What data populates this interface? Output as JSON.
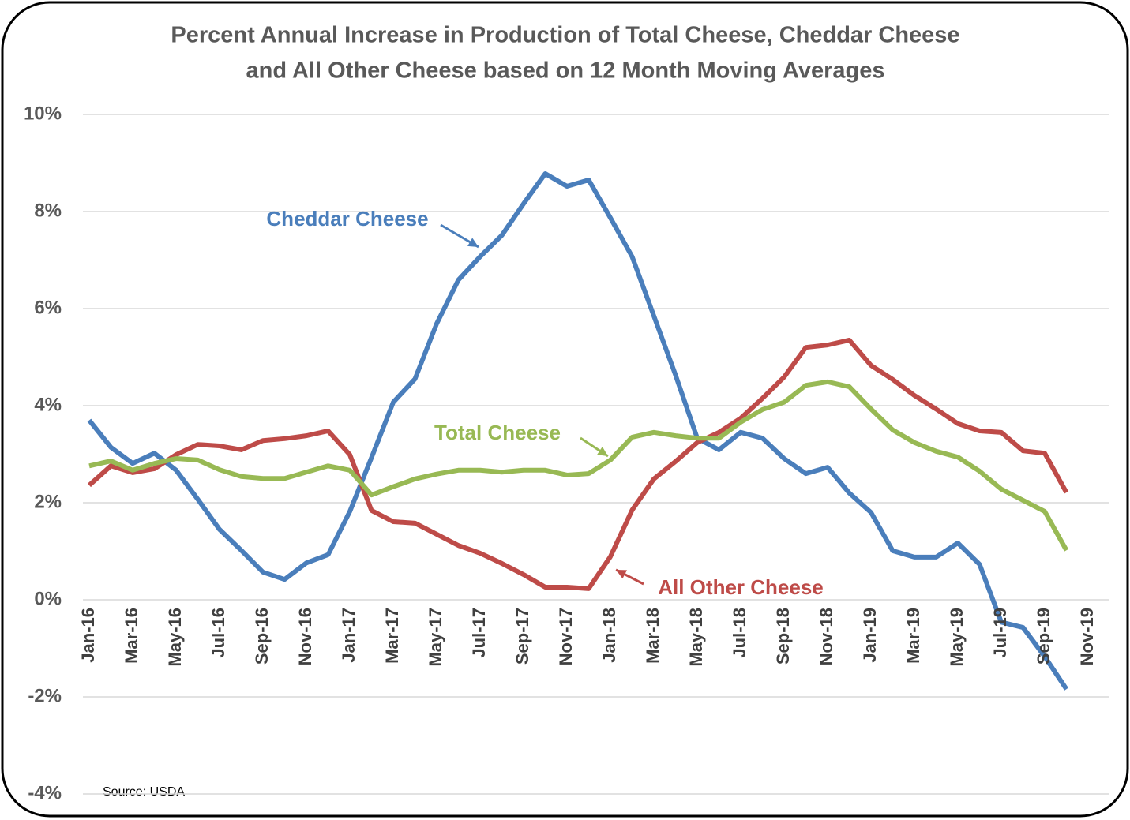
{
  "chart_data": {
    "type": "line",
    "title": [
      "Percent Annual Increase in Production of  Total Cheese, Cheddar Cheese",
      "and All Other Cheese based on 12 Month Moving Averages"
    ],
    "source": "Source: USDA",
    "categories": [
      "Jan-16",
      null,
      "Mar-16",
      null,
      "May-16",
      null,
      "Jul-16",
      null,
      "Sep-16",
      null,
      "Nov-16",
      null,
      "Jan-17",
      null,
      "Mar-17",
      null,
      "May-17",
      null,
      "Jul-17",
      null,
      "Sep-17",
      null,
      "Nov-17",
      null,
      "Jan-18",
      null,
      "Mar-18",
      null,
      "May-18",
      null,
      "Jul-18",
      null,
      "Sep-18",
      null,
      "Nov-18",
      null,
      "Jan-19",
      null,
      "Mar-19",
      null,
      "May-19",
      null,
      "Jul-19",
      null,
      "Sep-19",
      null,
      "Nov-19"
    ],
    "ylim": [
      -4,
      10
    ],
    "yticks": [
      {
        "value": -4,
        "label": "-4%"
      },
      {
        "value": -2,
        "label": "-2%"
      },
      {
        "value": 0,
        "label": "0%"
      },
      {
        "value": 2,
        "label": "2%"
      },
      {
        "value": 4,
        "label": "4%"
      },
      {
        "value": 6,
        "label": "6%"
      },
      {
        "value": 8,
        "label": "8%"
      },
      {
        "value": 10,
        "label": "10%"
      }
    ],
    "grid": true,
    "series": [
      {
        "name": "Cheddar Cheese",
        "color": "#4a7ebb",
        "values": [
          3.7,
          3.14,
          2.81,
          3.02,
          2.67,
          2.07,
          1.45,
          1.02,
          0.57,
          0.42,
          0.76,
          0.93,
          1.82,
          2.93,
          4.07,
          4.55,
          5.69,
          6.59,
          7.07,
          7.51,
          8.16,
          8.78,
          8.52,
          8.65,
          7.87,
          7.07,
          5.85,
          4.63,
          3.33,
          3.09,
          3.45,
          3.33,
          2.91,
          2.6,
          2.73,
          2.2,
          1.8,
          1.01,
          0.88,
          0.88,
          1.17,
          0.73,
          -0.46,
          -0.57,
          -1.17,
          -1.84,
          null
        ]
      },
      {
        "name": "All Other Cheese",
        "color": "#be4b48",
        "values": [
          2.36,
          2.76,
          2.62,
          2.7,
          2.99,
          3.2,
          3.17,
          3.09,
          3.28,
          3.32,
          3.38,
          3.48,
          2.99,
          1.84,
          1.61,
          1.58,
          1.35,
          1.12,
          0.96,
          0.75,
          0.52,
          0.26,
          0.26,
          0.23,
          0.89,
          1.85,
          2.49,
          2.85,
          3.24,
          3.45,
          3.74,
          4.15,
          4.59,
          5.2,
          5.25,
          5.35,
          4.83,
          4.54,
          4.21,
          3.93,
          3.63,
          3.48,
          3.45,
          3.07,
          3.02,
          2.21,
          null
        ]
      },
      {
        "name": "Total Cheese",
        "color": "#98b954",
        "values": [
          2.76,
          2.86,
          2.67,
          2.81,
          2.91,
          2.88,
          2.68,
          2.54,
          2.5,
          2.5,
          2.63,
          2.76,
          2.67,
          2.16,
          2.33,
          2.49,
          2.59,
          2.67,
          2.67,
          2.63,
          2.67,
          2.67,
          2.57,
          2.6,
          2.88,
          3.35,
          3.45,
          3.38,
          3.33,
          3.33,
          3.66,
          3.92,
          4.07,
          4.42,
          4.49,
          4.39,
          3.93,
          3.5,
          3.24,
          3.06,
          2.94,
          2.65,
          2.28,
          2.05,
          1.82,
          1.02,
          null
        ]
      }
    ]
  }
}
